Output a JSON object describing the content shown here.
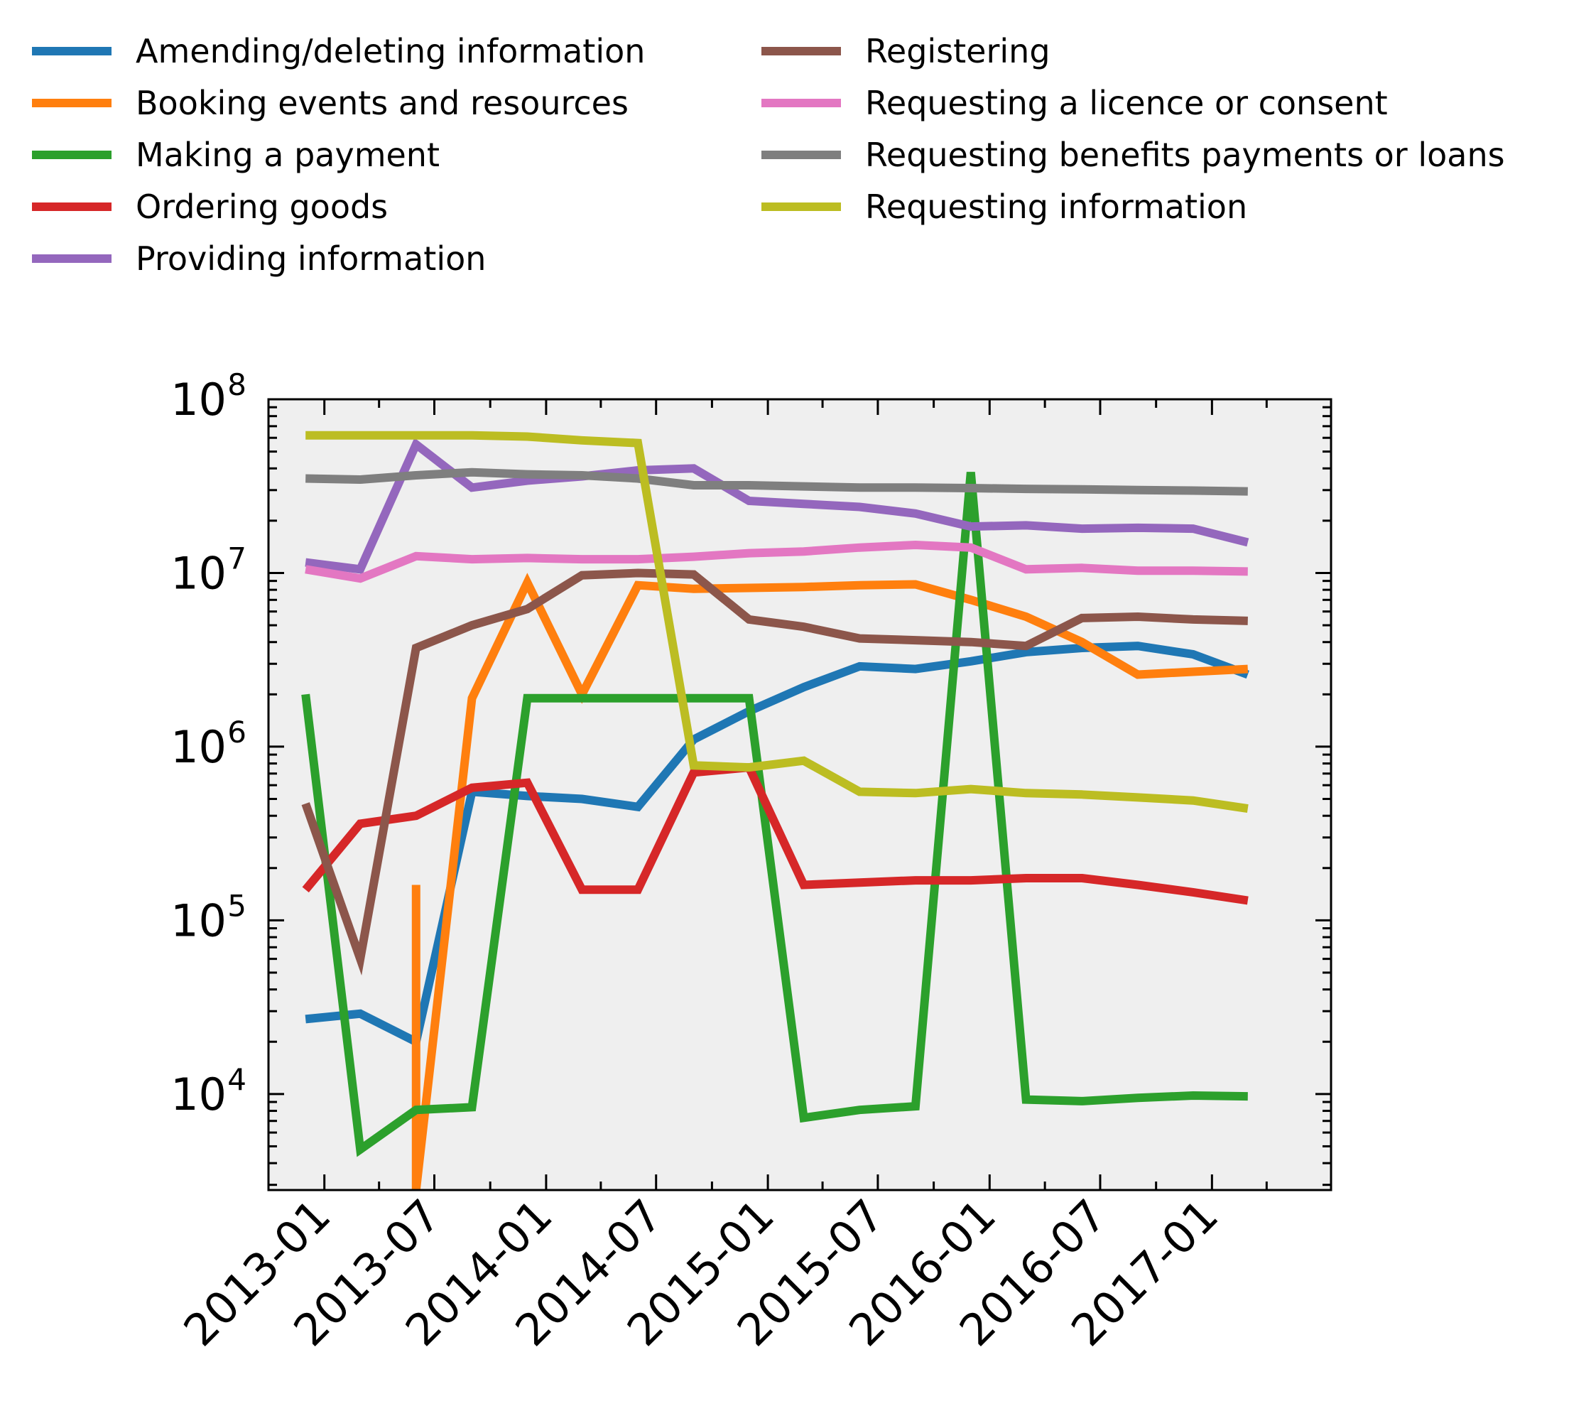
{
  "chart_data": {
    "type": "line",
    "title": "",
    "xlabel": "",
    "ylabel": "",
    "yscale": "log",
    "ylim": [
      2800,
      100000000
    ],
    "xlim": [
      "2012-10-01",
      "2017-07-16"
    ],
    "grid": false,
    "legend_position": "above-plot",
    "x_tick_labels": [
      "2013-01",
      "2013-07",
      "2014-01",
      "2014-07",
      "2015-01",
      "2015-07",
      "2016-01",
      "2016-07",
      "2017-01"
    ],
    "y_tick_labels": [
      {
        "base": "10",
        "exp": "4",
        "value": 10000
      },
      {
        "base": "10",
        "exp": "5",
        "value": 100000
      },
      {
        "base": "10",
        "exp": "6",
        "value": 1000000
      },
      {
        "base": "10",
        "exp": "7",
        "value": 10000000
      },
      {
        "base": "10",
        "exp": "8",
        "value": 100000000
      }
    ],
    "x": [
      "2012-12-01",
      "2013-03-01",
      "2013-06-01",
      "2013-09-01",
      "2013-12-01",
      "2014-03-01",
      "2014-06-01",
      "2014-09-01",
      "2014-12-01",
      "2015-03-01",
      "2015-06-01",
      "2015-09-01",
      "2015-12-01",
      "2016-03-01",
      "2016-06-01",
      "2016-09-01",
      "2016-12-01",
      "2017-03-01"
    ],
    "series": [
      {
        "name": "Amending/deleting information",
        "color": "#1f77b4",
        "values": [
          27000,
          29000,
          20000,
          550000,
          520000,
          500000,
          450000,
          1100000,
          1600000,
          2200000,
          2900000,
          2800000,
          3100000,
          3500000,
          3700000,
          3800000,
          3400000,
          2600000
        ]
      },
      {
        "name": "Booking events and resources",
        "color": "#ff7f0e",
        "values": [
          null,
          null,
          2800,
          1900000,
          8800000,
          2000000,
          8500000,
          8100000,
          8200000,
          8300000,
          8500000,
          8600000,
          7000000,
          5600000,
          4000000,
          2600000,
          2700000,
          2800000
        ],
        "extra_points": [
          [
            "2013-06-01",
            160000
          ]
        ]
      },
      {
        "name": "Making a payment",
        "color": "#2ca02c",
        "values": [
          2000000,
          4800,
          8100,
          8400,
          1900000,
          1900000,
          1900000,
          1900000,
          1900000,
          7300,
          8100,
          8500,
          38000000,
          9300,
          9100,
          9500,
          9800,
          9700
        ]
      },
      {
        "name": "Ordering goods",
        "color": "#d62728",
        "values": [
          150000,
          360000,
          400000,
          580000,
          620000,
          150000,
          150000,
          710000,
          760000,
          160000,
          165000,
          170000,
          170000,
          175000,
          175000,
          160000,
          145000,
          130000
        ]
      },
      {
        "name": "Providing information",
        "color": "#9467bd",
        "values": [
          11500000,
          10500000,
          55000000,
          31000000,
          34000000,
          36000000,
          39000000,
          40000000,
          26000000,
          25000000,
          24000000,
          22000000,
          18500000,
          18800000,
          18000000,
          18200000,
          18000000,
          15000000
        ]
      },
      {
        "name": "Registering",
        "color": "#8c564b",
        "values": [
          470000,
          60000,
          3700000,
          5000000,
          6200000,
          9700000,
          10000000,
          9800000,
          5400000,
          4900000,
          4200000,
          4100000,
          4000000,
          3800000,
          5500000,
          5600000,
          5400000,
          5300000
        ]
      },
      {
        "name": "Requesting a licence or consent",
        "color": "#e377c2",
        "values": [
          10500000,
          9300000,
          12500000,
          12000000,
          12200000,
          12000000,
          12000000,
          12400000,
          13000000,
          13300000,
          14000000,
          14500000,
          14000000,
          10500000,
          10700000,
          10300000,
          10300000,
          10200000
        ]
      },
      {
        "name": "Requesting benefits payments or loans",
        "color": "#7f7f7f",
        "values": [
          35000000,
          34500000,
          36500000,
          38000000,
          37000000,
          36500000,
          35000000,
          32000000,
          32000000,
          31500000,
          31000000,
          31000000,
          30800000,
          30500000,
          30300000,
          30000000,
          29800000,
          29500000
        ]
      },
      {
        "name": "Requesting information",
        "color": "#bcbd22",
        "values": [
          62000000,
          62000000,
          62000000,
          62000000,
          61000000,
          58000000,
          56000000,
          780000,
          760000,
          830000,
          550000,
          540000,
          570000,
          540000,
          530000,
          510000,
          490000,
          440000
        ]
      }
    ]
  }
}
